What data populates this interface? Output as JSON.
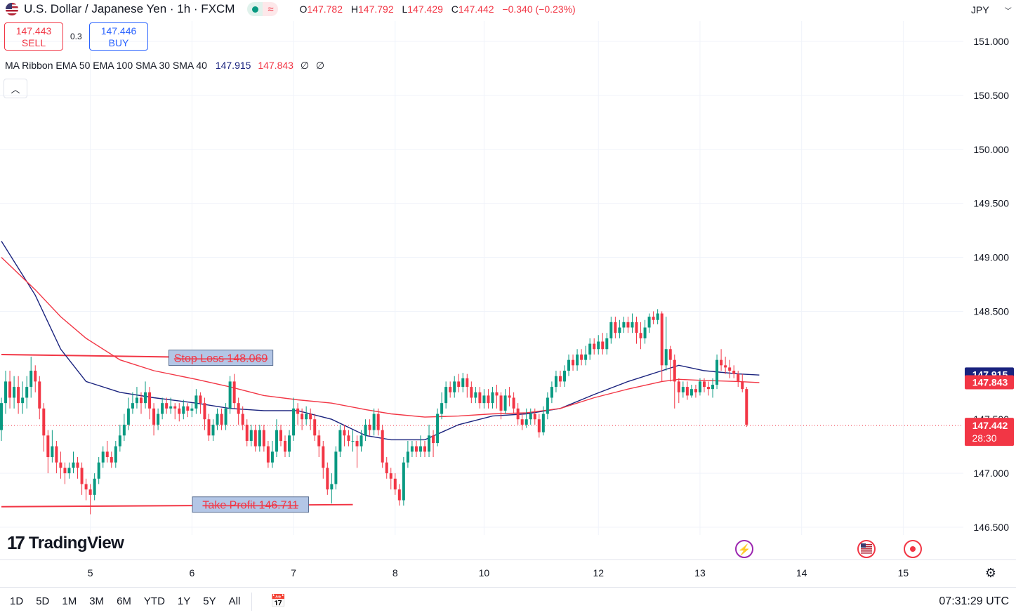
{
  "header": {
    "symbol_title": "U.S. Dollar / Japanese Yen · 1h · FXCM",
    "ohlc": {
      "o": "147.782",
      "h": "147.792",
      "l": "147.429",
      "c": "147.442",
      "change": "−0.340 (−0.23%)"
    }
  },
  "trade": {
    "sell_price": "147.443",
    "sell_label": "SELL",
    "spread": "0.3",
    "buy_price": "147.446",
    "buy_label": "BUY"
  },
  "indicator": {
    "label": "MA Ribbon EMA 50 EMA 100 SMA 30 SMA 40",
    "v1": "147.915",
    "v2": "147.843",
    "v3": "∅",
    "v4": "∅"
  },
  "currency": "JPY",
  "logo": "TradingView",
  "bottom": {
    "ranges": [
      "1D",
      "5D",
      "1M",
      "3M",
      "6M",
      "YTD",
      "1Y",
      "5Y",
      "All"
    ],
    "clock": "07:31:29 UTC"
  },
  "colors": {
    "up": "#089981",
    "down": "#f23645",
    "ema_fast": "#1a237e",
    "ema_slow": "#f23645",
    "accent": "#2962ff"
  },
  "chart_data": {
    "type": "candlestick",
    "y_ticks": [
      "151.000",
      "150.500",
      "150.000",
      "149.500",
      "149.000",
      "148.500",
      "147.000",
      "146.500"
    ],
    "ylim": [
      146.35,
      151.2
    ],
    "x_tick_labels": [
      {
        "label": "5",
        "bar": 21
      },
      {
        "label": "6",
        "bar": 45
      },
      {
        "label": "7",
        "bar": 69
      },
      {
        "label": "8",
        "bar": 93
      },
      {
        "label": "10",
        "bar": 114
      },
      {
        "label": "12",
        "bar": 141
      },
      {
        "label": "13",
        "bar": 165
      },
      {
        "label": "14",
        "bar": 189
      },
      {
        "label": "15",
        "bar": 213
      }
    ],
    "candles": [
      [
        147.4,
        147.65,
        147.7,
        147.3
      ],
      [
        147.65,
        147.85,
        147.95,
        147.55
      ],
      [
        147.85,
        147.7,
        147.95,
        147.6
      ],
      [
        147.7,
        147.8,
        147.9,
        147.6
      ],
      [
        147.8,
        147.65,
        147.9,
        147.55
      ],
      [
        147.65,
        147.7,
        147.85,
        147.55
      ],
      [
        147.7,
        147.8,
        147.9,
        147.6
      ],
      [
        147.8,
        147.95,
        148.08,
        147.7
      ],
      [
        147.95,
        147.85,
        148.0,
        147.75
      ],
      [
        147.85,
        147.6,
        147.9,
        147.5
      ],
      [
        147.6,
        147.35,
        147.65,
        147.2
      ],
      [
        147.35,
        147.15,
        147.4,
        147.0
      ],
      [
        147.15,
        147.25,
        147.4,
        147.1
      ],
      [
        147.25,
        147.1,
        147.3,
        147.0
      ],
      [
        147.1,
        147.05,
        147.2,
        146.95
      ],
      [
        147.05,
        147.0,
        147.1,
        146.9
      ],
      [
        147.0,
        147.05,
        147.1,
        146.95
      ],
      [
        147.05,
        147.1,
        147.2,
        147.0
      ],
      [
        147.1,
        147.05,
        147.15,
        146.95
      ],
      [
        147.05,
        146.9,
        147.1,
        146.8
      ],
      [
        146.9,
        146.85,
        146.95,
        146.75
      ],
      [
        146.85,
        146.8,
        146.9,
        146.62
      ],
      [
        146.8,
        146.95,
        147.0,
        146.75
      ],
      [
        146.95,
        147.1,
        147.15,
        146.9
      ],
      [
        147.1,
        147.2,
        147.25,
        147.05
      ],
      [
        147.2,
        147.15,
        147.3,
        147.1
      ],
      [
        147.15,
        147.1,
        147.2,
        147.05
      ],
      [
        147.1,
        147.25,
        147.3,
        147.05
      ],
      [
        147.25,
        147.35,
        147.45,
        147.2
      ],
      [
        147.35,
        147.45,
        147.55,
        147.3
      ],
      [
        147.45,
        147.6,
        147.7,
        147.4
      ],
      [
        147.6,
        147.65,
        147.75,
        147.55
      ],
      [
        147.65,
        147.7,
        147.8,
        147.6
      ],
      [
        147.7,
        147.65,
        147.75,
        147.55
      ],
      [
        147.65,
        147.75,
        147.85,
        147.6
      ],
      [
        147.75,
        147.6,
        147.8,
        147.5
      ],
      [
        147.6,
        147.45,
        147.65,
        147.35
      ],
      [
        147.45,
        147.55,
        147.6,
        147.4
      ],
      [
        147.55,
        147.65,
        147.7,
        147.5
      ],
      [
        147.65,
        147.6,
        147.7,
        147.55
      ],
      [
        147.6,
        147.62,
        147.7,
        147.55
      ],
      [
        147.62,
        147.6,
        147.65,
        147.5
      ],
      [
        147.6,
        147.55,
        147.65,
        147.48
      ],
      [
        147.55,
        147.62,
        147.68,
        147.5
      ],
      [
        147.62,
        147.58,
        147.65,
        147.52
      ],
      [
        147.58,
        147.6,
        147.65,
        147.52
      ],
      [
        147.6,
        147.72,
        147.78,
        147.55
      ],
      [
        147.72,
        147.65,
        147.75,
        147.55
      ],
      [
        147.65,
        147.5,
        147.7,
        147.4
      ],
      [
        147.5,
        147.35,
        147.55,
        147.3
      ],
      [
        147.35,
        147.45,
        147.5,
        147.3
      ],
      [
        147.45,
        147.55,
        147.6,
        147.4
      ],
      [
        147.55,
        147.45,
        147.6,
        147.4
      ],
      [
        147.45,
        147.6,
        147.65,
        147.4
      ],
      [
        147.6,
        147.85,
        147.9,
        147.55
      ],
      [
        147.85,
        147.65,
        147.92,
        147.6
      ],
      [
        147.65,
        147.55,
        147.7,
        147.45
      ],
      [
        147.55,
        147.45,
        147.62,
        147.4
      ],
      [
        147.45,
        147.3,
        147.5,
        147.25
      ],
      [
        147.3,
        147.4,
        147.45,
        147.25
      ],
      [
        147.4,
        147.25,
        147.45,
        147.2
      ],
      [
        147.25,
        147.4,
        147.45,
        147.2
      ],
      [
        147.4,
        147.25,
        147.45,
        147.2
      ],
      [
        147.25,
        147.1,
        147.3,
        147.05
      ],
      [
        147.1,
        147.2,
        147.3,
        147.05
      ],
      [
        147.2,
        147.4,
        147.5,
        147.15
      ],
      [
        147.4,
        147.3,
        147.45,
        147.25
      ],
      [
        147.3,
        147.2,
        147.35,
        147.15
      ],
      [
        147.2,
        147.35,
        147.4,
        147.15
      ],
      [
        147.35,
        147.6,
        147.7,
        147.3
      ],
      [
        147.6,
        147.55,
        147.65,
        147.45
      ],
      [
        147.55,
        147.5,
        147.6,
        147.4
      ],
      [
        147.5,
        147.55,
        147.62,
        147.45
      ],
      [
        147.55,
        147.5,
        147.6,
        147.4
      ],
      [
        147.5,
        147.35,
        147.55,
        147.3
      ],
      [
        147.35,
        147.25,
        147.4,
        147.15
      ],
      [
        147.25,
        147.05,
        147.3,
        146.95
      ],
      [
        147.05,
        146.85,
        147.1,
        146.8
      ],
      [
        146.85,
        146.9,
        147.0,
        146.72
      ],
      [
        146.9,
        147.2,
        147.25,
        146.85
      ],
      [
        147.2,
        147.4,
        147.45,
        147.15
      ],
      [
        147.4,
        147.35,
        147.45,
        147.25
      ],
      [
        147.35,
        147.3,
        147.4,
        147.25
      ],
      [
        147.3,
        147.3,
        147.4,
        147.2
      ],
      [
        147.3,
        147.25,
        147.35,
        147.05
      ],
      [
        147.25,
        147.35,
        147.4,
        147.2
      ],
      [
        147.35,
        147.45,
        147.5,
        147.3
      ],
      [
        147.45,
        147.4,
        147.5,
        147.35
      ],
      [
        147.4,
        147.55,
        147.6,
        147.35
      ],
      [
        147.55,
        147.4,
        147.6,
        147.35
      ],
      [
        147.4,
        147.1,
        147.45,
        147.05
      ],
      [
        147.1,
        147.0,
        147.15,
        146.95
      ],
      [
        147.0,
        146.95,
        147.05,
        146.85
      ],
      [
        146.95,
        146.85,
        147.0,
        146.8
      ],
      [
        146.85,
        146.75,
        146.9,
        146.7
      ],
      [
        146.75,
        147.1,
        147.15,
        146.7
      ],
      [
        147.1,
        147.2,
        147.3,
        147.05
      ],
      [
        147.2,
        147.25,
        147.3,
        147.15
      ],
      [
        147.25,
        147.2,
        147.3,
        147.15
      ],
      [
        147.2,
        147.25,
        147.35,
        147.15
      ],
      [
        147.25,
        147.2,
        147.3,
        147.15
      ],
      [
        147.2,
        147.35,
        147.45,
        147.15
      ],
      [
        147.35,
        147.28,
        147.4,
        147.15
      ],
      [
        147.28,
        147.55,
        147.6,
        147.25
      ],
      [
        147.55,
        147.65,
        147.75,
        147.5
      ],
      [
        147.65,
        147.8,
        147.85,
        147.6
      ],
      [
        147.8,
        147.75,
        147.85,
        147.7
      ],
      [
        147.75,
        147.85,
        147.9,
        147.7
      ],
      [
        147.85,
        147.8,
        147.92,
        147.75
      ],
      [
        147.8,
        147.88,
        147.93,
        147.75
      ],
      [
        147.88,
        147.8,
        147.92,
        147.7
      ],
      [
        147.8,
        147.7,
        147.85,
        147.65
      ],
      [
        147.7,
        147.75,
        147.8,
        147.65
      ],
      [
        147.75,
        147.65,
        147.8,
        147.6
      ],
      [
        147.65,
        147.72,
        147.78,
        147.6
      ],
      [
        147.72,
        147.65,
        147.78,
        147.6
      ],
      [
        147.65,
        147.75,
        147.8,
        147.6
      ],
      [
        147.75,
        147.72,
        147.82,
        147.6
      ],
      [
        147.72,
        147.58,
        147.75,
        147.5
      ],
      [
        147.58,
        147.72,
        147.78,
        147.55
      ],
      [
        147.72,
        147.7,
        147.8,
        147.62
      ],
      [
        147.7,
        147.6,
        147.75,
        147.55
      ],
      [
        147.6,
        147.5,
        147.65,
        147.45
      ],
      [
        147.5,
        147.45,
        147.55,
        147.4
      ],
      [
        147.45,
        147.5,
        147.6,
        147.42
      ],
      [
        147.5,
        147.55,
        147.6,
        147.45
      ],
      [
        147.55,
        147.5,
        147.6,
        147.45
      ],
      [
        147.5,
        147.38,
        147.55,
        147.33
      ],
      [
        147.38,
        147.55,
        147.62,
        147.35
      ],
      [
        147.55,
        147.7,
        147.75,
        147.5
      ],
      [
        147.7,
        147.8,
        147.85,
        147.65
      ],
      [
        147.8,
        147.9,
        147.95,
        147.75
      ],
      [
        147.9,
        147.85,
        147.95,
        147.8
      ],
      [
        147.85,
        147.95,
        148.0,
        147.8
      ],
      [
        147.95,
        148.05,
        148.1,
        147.9
      ],
      [
        148.05,
        148.0,
        148.1,
        147.95
      ],
      [
        148.0,
        148.1,
        148.15,
        147.95
      ],
      [
        148.1,
        148.05,
        148.15,
        148.0
      ],
      [
        148.05,
        148.1,
        148.18,
        148.0
      ],
      [
        148.1,
        148.2,
        148.25,
        148.05
      ],
      [
        148.2,
        148.15,
        148.25,
        148.1
      ],
      [
        148.15,
        148.22,
        148.28,
        148.1
      ],
      [
        148.22,
        148.15,
        148.3,
        148.1
      ],
      [
        148.15,
        148.25,
        148.3,
        148.1
      ],
      [
        148.25,
        148.4,
        148.45,
        148.2
      ],
      [
        148.4,
        148.3,
        148.45,
        148.25
      ],
      [
        148.3,
        148.35,
        148.42,
        148.25
      ],
      [
        148.35,
        148.4,
        148.45,
        148.3
      ],
      [
        148.4,
        148.35,
        148.45,
        148.3
      ],
      [
        148.35,
        148.4,
        148.48,
        148.3
      ],
      [
        148.4,
        148.3,
        148.45,
        148.2
      ],
      [
        148.3,
        148.25,
        148.4,
        148.15
      ],
      [
        148.25,
        148.35,
        148.42,
        148.2
      ],
      [
        148.35,
        148.45,
        148.48,
        148.3
      ],
      [
        148.45,
        148.42,
        148.5,
        148.38
      ],
      [
        148.42,
        148.48,
        148.52,
        148.38
      ],
      [
        148.48,
        148.0,
        148.5,
        147.85
      ],
      [
        148.0,
        148.15,
        148.45,
        147.95
      ],
      [
        148.15,
        148.05,
        148.18,
        147.85
      ],
      [
        148.05,
        147.85,
        148.1,
        147.6
      ],
      [
        147.85,
        147.75,
        147.88,
        147.65
      ],
      [
        147.75,
        147.8,
        147.85,
        147.7
      ],
      [
        147.8,
        147.72,
        147.85,
        147.68
      ],
      [
        147.72,
        147.78,
        147.82,
        147.7
      ],
      [
        147.78,
        147.75,
        147.82,
        147.7
      ],
      [
        147.75,
        147.85,
        147.88,
        147.72
      ],
      [
        147.85,
        147.8,
        147.88,
        147.75
      ],
      [
        147.8,
        147.78,
        147.85,
        147.72
      ],
      [
        147.78,
        147.82,
        147.88,
        147.7
      ],
      [
        147.82,
        148.05,
        148.1,
        147.78
      ],
      [
        148.05,
        148.0,
        148.15,
        147.95
      ],
      [
        148.0,
        147.98,
        148.08,
        147.92
      ],
      [
        147.98,
        147.95,
        148.05,
        147.88
      ],
      [
        147.95,
        147.92,
        148.0,
        147.88
      ],
      [
        147.92,
        147.85,
        147.95,
        147.8
      ],
      [
        147.85,
        147.78,
        147.92,
        147.75
      ],
      [
        147.78,
        147.45,
        147.8,
        147.43
      ]
    ],
    "series": [
      {
        "name": "EMA 50",
        "color": "#1a237e",
        "values": [
          [
            0,
            149.15
          ],
          [
            8,
            148.65
          ],
          [
            14,
            148.15
          ],
          [
            20,
            147.85
          ],
          [
            28,
            147.75
          ],
          [
            36,
            147.7
          ],
          [
            46,
            147.65
          ],
          [
            54,
            147.6
          ],
          [
            62,
            147.58
          ],
          [
            70,
            147.58
          ],
          [
            78,
            147.5
          ],
          [
            86,
            147.35
          ],
          [
            92,
            147.31
          ],
          [
            100,
            147.31
          ],
          [
            108,
            147.45
          ],
          [
            116,
            147.53
          ],
          [
            124,
            147.55
          ],
          [
            132,
            147.6
          ],
          [
            140,
            147.73
          ],
          [
            148,
            147.85
          ],
          [
            156,
            147.95
          ],
          [
            160,
            148.0
          ],
          [
            166,
            147.95
          ],
          [
            174,
            147.92
          ],
          [
            179,
            147.91
          ]
        ]
      },
      {
        "name": "EMA 100",
        "color": "#f23645",
        "values": [
          [
            0,
            149.0
          ],
          [
            8,
            148.7
          ],
          [
            14,
            148.45
          ],
          [
            20,
            148.25
          ],
          [
            28,
            148.05
          ],
          [
            36,
            147.95
          ],
          [
            46,
            147.87
          ],
          [
            54,
            147.8
          ],
          [
            62,
            147.72
          ],
          [
            70,
            147.68
          ],
          [
            78,
            147.65
          ],
          [
            86,
            147.59
          ],
          [
            92,
            147.55
          ],
          [
            100,
            147.52
          ],
          [
            108,
            147.53
          ],
          [
            116,
            147.55
          ],
          [
            124,
            147.56
          ],
          [
            132,
            147.6
          ],
          [
            140,
            147.7
          ],
          [
            148,
            147.78
          ],
          [
            156,
            147.85
          ],
          [
            160,
            147.87
          ],
          [
            166,
            147.86
          ],
          [
            174,
            147.85
          ],
          [
            179,
            147.84
          ]
        ]
      }
    ],
    "hlines": [
      {
        "label": "Stop Loss 148.069",
        "x_bars": [
          0,
          52
        ],
        "y": [
          148.1,
          148.07
        ],
        "color": "#f23645",
        "label_bar": 52
      },
      {
        "label": "Take Profit 146.711",
        "x_bars": [
          0,
          83
        ],
        "y": [
          146.69,
          146.71
        ],
        "color": "#f23645",
        "label_bar": 59
      }
    ],
    "last_price": {
      "value": "147.442",
      "countdown": "28:30",
      "color": "#f23645"
    },
    "ma_badges": [
      {
        "value": "147.915",
        "color": "#1a237e"
      },
      {
        "value": "147.843",
        "color": "#f23645"
      }
    ],
    "obscured_tick": "147.500",
    "event_markers": [
      "lightning-icon",
      "us-flag-icon",
      "record-icon"
    ]
  }
}
